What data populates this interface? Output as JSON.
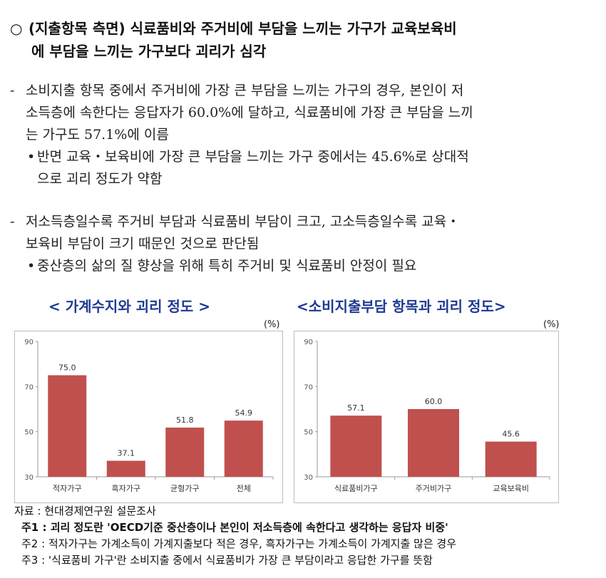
{
  "heading": {
    "bullet": "○",
    "line1": "(지출항목 측면) 식료품비와 주거비에 부담을 느끼는 가구가 교육보육비",
    "line2": "에 부담을 느끼는 가구보다 괴리가 심각"
  },
  "para1": {
    "dash": "-",
    "line1": "소비지출 항목 중에서 주거비에 가장 큰 부담을 느끼는 가구의 경우, 본인이 저",
    "line2": "소득층에 속한다는 응답자가 60.0%에 달하고, 식료품비에 가장 큰 부담을 느끼",
    "line3": "는 가구도 57.1%에 이름",
    "sub_dot": "•",
    "sub_line1": "반면 교육‧보육비에 가장 큰 부담을 느끼는 가구 중에서는 45.6%로 상대적",
    "sub_line2": "으로 괴리 정도가 약함"
  },
  "para2": {
    "dash": "-",
    "line1": "저소득층일수록 주거비 부담과 식료품비 부담이 크고, 고소득층일수록 교육‧",
    "line2": "보육비 부담이 크기 때문인 것으로 판단됨",
    "sub_dot": "•",
    "sub_line1": "중산층의 삶의 질 향상을 위해 특히 주거비 및 식료품비 안정이 필요"
  },
  "chart_data": [
    {
      "type": "bar",
      "title": "< 가계수지와 괴리 정도 >",
      "unit": "(%)",
      "categories": [
        "적자가구",
        "흑자가구",
        "균형가구",
        "전체"
      ],
      "values": [
        75.0,
        37.1,
        51.8,
        54.9
      ],
      "value_labels": [
        "75.0",
        "37.1",
        "51.8",
        "54.9"
      ],
      "yticks": [
        "30",
        "50",
        "70",
        "90"
      ],
      "ylim": [
        30,
        90
      ],
      "bar_color": "#c0504d"
    },
    {
      "type": "bar",
      "title": "<소비지출부담 항목과 괴리 정도>",
      "unit": "(%)",
      "categories": [
        "식료품비가구",
        "주거비가구",
        "교육보육비"
      ],
      "values": [
        57.1,
        60.0,
        45.6
      ],
      "value_labels": [
        "57.1",
        "60.0",
        "45.6"
      ],
      "yticks": [
        "30",
        "50",
        "70",
        "90"
      ],
      "ylim": [
        30,
        90
      ],
      "bar_color": "#c0504d"
    }
  ],
  "notes": {
    "source": "자료 : 현대경제연구원 설문조사",
    "note1_label": "주1 : ",
    "note1_text": "괴리 정도란 'OECD기준 중산층이나 본인이 저소득층에 속한다고 생각하는 응답자 비중'",
    "note2": "주2 : 적자가구는 가계소득이 가계지출보다 적은 경우, 흑자가구는 가계소득이 가계지출 많은 경우",
    "note3": "주3 : '식료품비 가구'란 소비지출 중에서 식료품비가 가장 큰 부담이라고 응답한 가구를 뜻함"
  }
}
